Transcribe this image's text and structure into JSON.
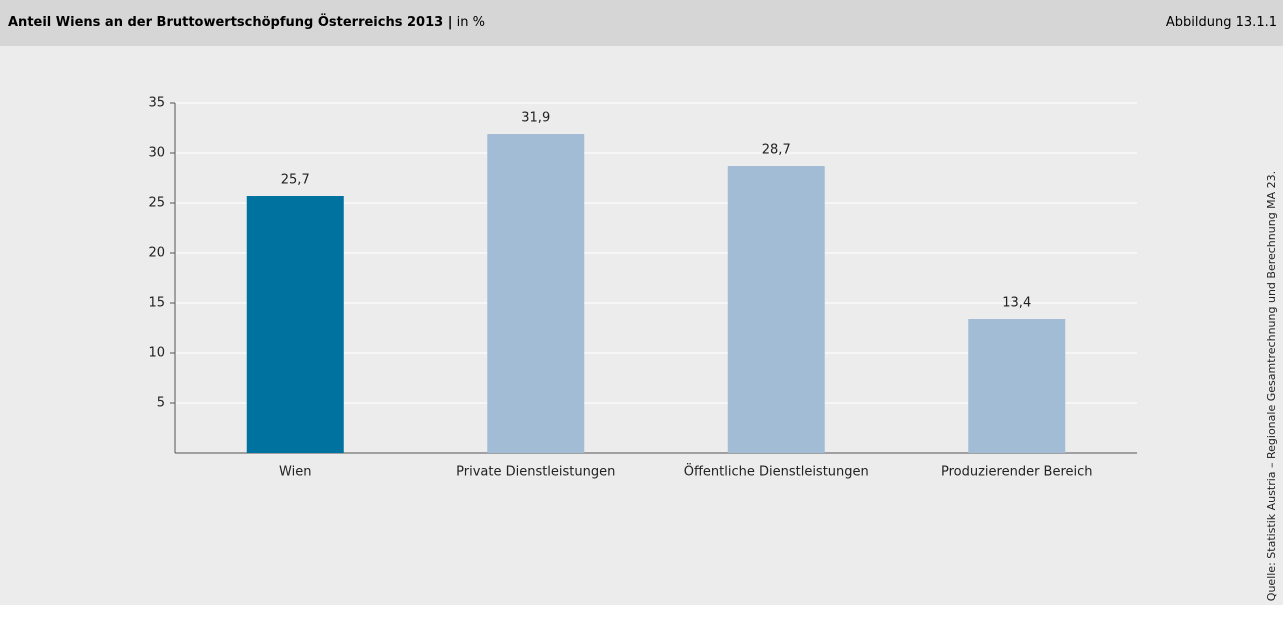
{
  "chart_data": {
    "type": "bar",
    "title": "Anteil Wiens an der Bruttowertschöpfung Österreichs 2013 |",
    "subtitle": "in %",
    "figure_label": "Abbildung 13.1.1",
    "source": "Quelle: Statistik Austria – Regionale Gesamtrechnung und Berechnung MA 23.",
    "categories": [
      "Wien",
      "Private Dienstleistungen",
      "Öffentliche Dienstleistungen",
      "Produzierender Bereich"
    ],
    "values": [
      25.7,
      31.9,
      28.7,
      13.4
    ],
    "value_labels": [
      "25,7",
      "31,9",
      "28,7",
      "13,4"
    ],
    "colors": [
      "#00729f",
      "#a3bcd5",
      "#a3bcd5",
      "#a3bcd5"
    ],
    "ylim": [
      0,
      35
    ],
    "yticks": [
      5,
      10,
      15,
      20,
      25,
      30,
      35
    ],
    "grid": true
  }
}
